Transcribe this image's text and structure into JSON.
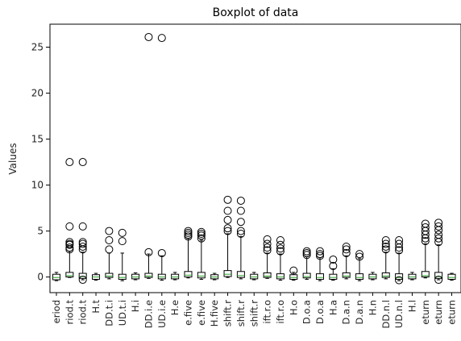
{
  "chart_data": {
    "type": "boxplot",
    "title": "Boxplot of data",
    "xlabel": "",
    "ylabel": "Values",
    "ylim": [
      -1.7,
      27.5
    ],
    "yticks": [
      0,
      5,
      10,
      15,
      20,
      25
    ],
    "grid": false,
    "colors": {
      "box": "#000000",
      "median": "#2ca02c",
      "flier": "#000000",
      "background": "#ffffff"
    },
    "categories": [
      "eriod",
      "riod.t",
      "riod.t",
      "H.t",
      "DD.t.i",
      "UD.t.i",
      "H.i",
      "DD.i.e",
      "UD.i.e",
      "H.e",
      "e.five",
      "e.five",
      "H.five",
      "shift.r",
      "shift.r",
      "shift.r",
      "ift.r.o",
      "ift.r.o",
      "H.o",
      "D.o.a",
      "D.o.a",
      "H.a",
      "D.a.n",
      "D.a.n",
      "H.n",
      "DD.n.l",
      "UD.n.l",
      "H.l",
      "eturn",
      "eturn",
      "eturn"
    ],
    "boxes": [
      {
        "q1": -0.3,
        "median": -0.05,
        "q3": 0.3,
        "whislo": -0.4,
        "whishi": 0.5,
        "fliers": []
      },
      {
        "q1": 0.0,
        "median": 0.15,
        "q3": 0.5,
        "whislo": -0.05,
        "whishi": 2.8,
        "fliers": [
          3.0,
          3.2,
          3.5,
          3.6,
          3.8,
          5.5,
          12.5
        ]
      },
      {
        "q1": -0.15,
        "median": 0.05,
        "q3": 0.4,
        "whislo": -0.3,
        "whishi": 2.7,
        "fliers": [
          -0.3,
          3.0,
          3.3,
          3.6,
          3.8,
          5.5,
          12.5
        ]
      },
      {
        "q1": -0.25,
        "median": 0.0,
        "q3": 0.25,
        "whislo": -0.35,
        "whishi": 0.4,
        "fliers": []
      },
      {
        "q1": -0.05,
        "median": 0.1,
        "q3": 0.4,
        "whislo": -0.2,
        "whishi": 2.6,
        "fliers": [
          3.0,
          4.0,
          5.0
        ]
      },
      {
        "q1": -0.25,
        "median": -0.05,
        "q3": 0.3,
        "whislo": -0.4,
        "whishi": 2.6,
        "fliers": [
          3.9,
          4.8
        ]
      },
      {
        "q1": -0.2,
        "median": 0.0,
        "q3": 0.3,
        "whislo": -0.3,
        "whishi": 0.45,
        "fliers": []
      },
      {
        "q1": -0.05,
        "median": 0.1,
        "q3": 0.4,
        "whislo": -0.15,
        "whishi": 2.5,
        "fliers": [
          2.7,
          26.1
        ]
      },
      {
        "q1": -0.2,
        "median": 0.0,
        "q3": 0.3,
        "whislo": -0.35,
        "whishi": 2.3,
        "fliers": [
          2.6,
          26.0
        ]
      },
      {
        "q1": -0.2,
        "median": 0.0,
        "q3": 0.3,
        "whislo": -0.3,
        "whishi": 0.5,
        "fliers": []
      },
      {
        "q1": 0.0,
        "median": 0.2,
        "q3": 0.6,
        "whislo": -0.1,
        "whishi": 4.2,
        "fliers": [
          4.4,
          4.6,
          4.8,
          5.0
        ]
      },
      {
        "q1": -0.1,
        "median": 0.1,
        "q3": 0.5,
        "whislo": -0.25,
        "whishi": 4.0,
        "fliers": [
          4.2,
          4.5,
          4.7,
          4.9
        ]
      },
      {
        "q1": -0.2,
        "median": 0.0,
        "q3": 0.25,
        "whislo": -0.3,
        "whishi": 0.4,
        "fliers": []
      },
      {
        "q1": 0.05,
        "median": 0.3,
        "q3": 0.7,
        "whislo": -0.05,
        "whishi": 4.7,
        "fliers": [
          5.0,
          5.3,
          6.2,
          7.2,
          8.4
        ]
      },
      {
        "q1": -0.05,
        "median": 0.15,
        "q3": 0.6,
        "whislo": -0.2,
        "whishi": 4.4,
        "fliers": [
          4.7,
          5.0,
          6.0,
          7.2,
          8.3
        ]
      },
      {
        "q1": -0.2,
        "median": 0.0,
        "q3": 0.3,
        "whislo": -0.3,
        "whishi": 0.5,
        "fliers": []
      },
      {
        "q1": -0.05,
        "median": 0.1,
        "q3": 0.45,
        "whislo": -0.15,
        "whishi": 2.6,
        "fliers": [
          2.9,
          3.2,
          3.6,
          4.1
        ]
      },
      {
        "q1": -0.2,
        "median": 0.0,
        "q3": 0.35,
        "whislo": -0.35,
        "whishi": 2.5,
        "fliers": [
          2.8,
          3.1,
          3.5,
          4.0
        ]
      },
      {
        "q1": -0.25,
        "median": -0.05,
        "q3": 0.25,
        "whislo": -0.35,
        "whishi": 0.5,
        "fliers": [
          0.7
        ]
      },
      {
        "q1": -0.1,
        "median": 0.05,
        "q3": 0.4,
        "whislo": -0.25,
        "whishi": 2.2,
        "fliers": [
          2.4,
          2.6,
          2.8
        ]
      },
      {
        "q1": -0.25,
        "median": -0.05,
        "q3": 0.35,
        "whislo": -0.4,
        "whishi": 2.1,
        "fliers": [
          2.3,
          2.5,
          2.8
        ]
      },
      {
        "q1": -0.25,
        "median": -0.05,
        "q3": 0.3,
        "whislo": -0.35,
        "whishi": 0.9,
        "fliers": [
          1.2,
          1.9
        ]
      },
      {
        "q1": -0.05,
        "median": 0.1,
        "q3": 0.45,
        "whislo": -0.2,
        "whishi": 2.3,
        "fliers": [
          2.6,
          3.0,
          3.3
        ]
      },
      {
        "q1": -0.25,
        "median": -0.05,
        "q3": 0.35,
        "whislo": -0.4,
        "whishi": 2.0,
        "fliers": [
          2.2,
          2.5
        ]
      },
      {
        "q1": -0.2,
        "median": 0.0,
        "q3": 0.3,
        "whislo": -0.3,
        "whishi": 0.5,
        "fliers": []
      },
      {
        "q1": -0.05,
        "median": 0.1,
        "q3": 0.45,
        "whislo": -0.2,
        "whishi": 2.7,
        "fliers": [
          3.0,
          3.3,
          3.6,
          4.0
        ]
      },
      {
        "q1": -0.25,
        "median": -0.05,
        "q3": 0.35,
        "whislo": -0.4,
        "whishi": 2.6,
        "fliers": [
          -0.35,
          2.9,
          3.2,
          3.6,
          4.0
        ]
      },
      {
        "q1": -0.2,
        "median": 0.0,
        "q3": 0.3,
        "whislo": -0.3,
        "whishi": 0.5,
        "fliers": []
      },
      {
        "q1": 0.0,
        "median": 0.15,
        "q3": 0.6,
        "whislo": -0.1,
        "whishi": 3.6,
        "fliers": [
          3.9,
          4.2,
          4.6,
          5.0,
          5.4,
          5.8
        ]
      },
      {
        "q1": -0.15,
        "median": 0.05,
        "q3": 0.5,
        "whislo": -0.3,
        "whishi": 3.5,
        "fliers": [
          -0.3,
          3.8,
          4.2,
          4.6,
          5.1,
          5.5,
          5.9
        ]
      },
      {
        "q1": -0.25,
        "median": -0.05,
        "q3": 0.3,
        "whislo": -0.35,
        "whishi": 0.4,
        "fliers": []
      }
    ]
  }
}
